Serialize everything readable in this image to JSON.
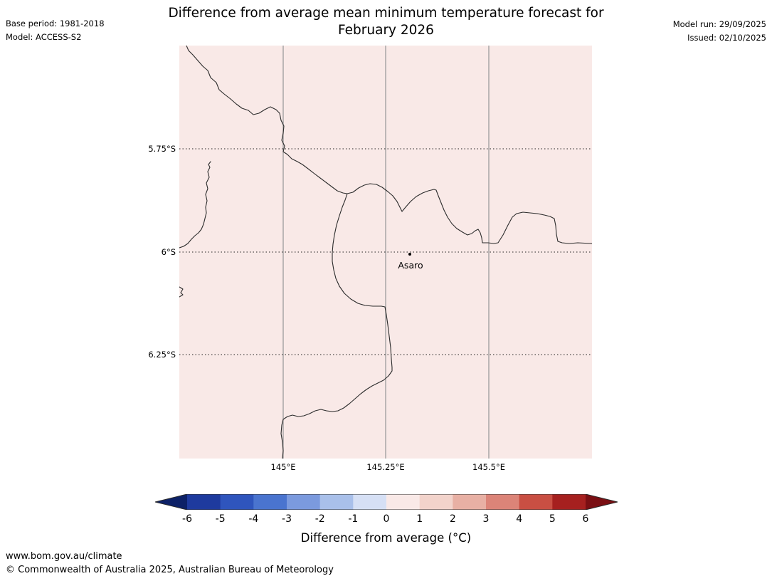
{
  "header": {
    "title_line1": "Difference from average mean minimum temperature forecast for",
    "title_line2": "February 2026",
    "base_period": "Base period: 1981-2018",
    "model": "Model: ACCESS-S2",
    "model_run": "Model run: 29/09/2025",
    "issued": "Issued: 02/10/2025"
  },
  "map": {
    "fill_color": "#f9e9e7",
    "boundary_color": "#2b2b2b",
    "grid_vertical_color": "#9b9b9b",
    "grid_horizontal_color": "#222222",
    "lat_labels": [
      "5.75°S",
      "6°S",
      "6.25°S"
    ],
    "lon_labels": [
      "145°E",
      "145.25°E",
      "145.5°E"
    ],
    "place_marker": "Asaro"
  },
  "colorbar": {
    "label": "Difference from average (°C)",
    "ticks": [
      "-6",
      "-5",
      "-4",
      "-3",
      "-2",
      "-1",
      "0",
      "1",
      "2",
      "3",
      "4",
      "5",
      "6"
    ],
    "segment_colors": [
      "#1e3a9e",
      "#2f55bd",
      "#4a74cf",
      "#7b9ade",
      "#a9c0ea",
      "#d6e0f5",
      "#f9e9e7",
      "#f2d3cb",
      "#e8b0a4",
      "#dc8478",
      "#c94f43",
      "#a6201f"
    ],
    "arrow_left_color": "#0d2167",
    "arrow_right_color": "#7a0f13"
  },
  "footer": {
    "url": "www.bom.gov.au/climate",
    "copyright": "© Commonwealth of Australia 2025, Australian Bureau of Meteorology"
  }
}
